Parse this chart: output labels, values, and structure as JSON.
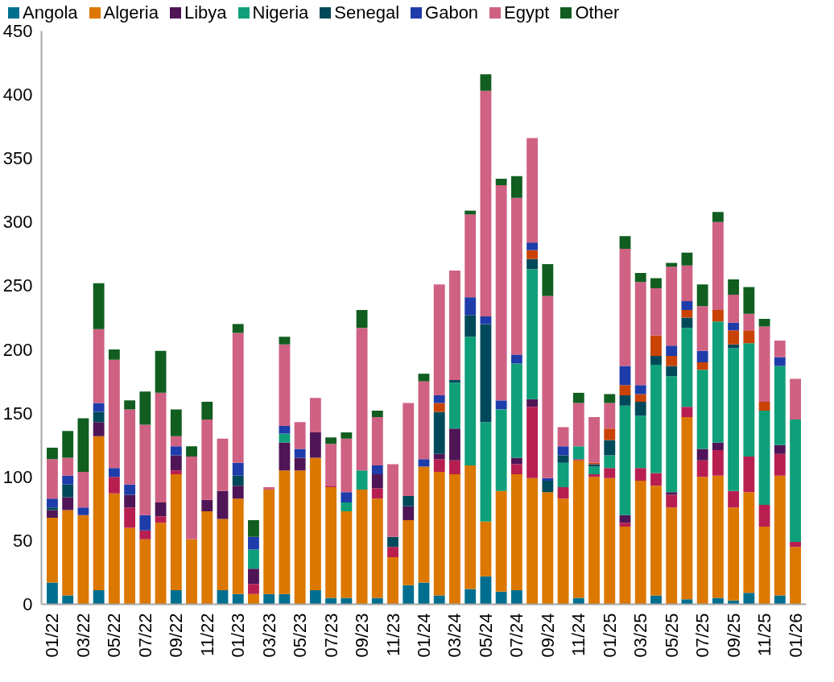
{
  "chart_data": {
    "type": "bar",
    "stacked": true,
    "legend": "top",
    "grid": false,
    "categories": [
      "01/22",
      null,
      "03/22",
      null,
      "05/22",
      null,
      "07/22",
      null,
      "09/22",
      null,
      "11/22",
      null,
      "01/23",
      null,
      "03/23",
      null,
      "05/23",
      null,
      "07/23",
      null,
      "09/23",
      null,
      "11/23",
      null,
      "01/24",
      null,
      "03/24",
      null,
      "05/24",
      null,
      "07/24",
      null,
      "09/24",
      null,
      "11/24",
      null,
      "01/25",
      null,
      "03/25",
      null,
      "05/25",
      null,
      "07/25",
      null,
      "09/25",
      null,
      "11/25",
      null,
      "01/26"
    ],
    "ylim": [
      0,
      450
    ],
    "yticks": [
      0,
      50,
      100,
      150,
      200,
      250,
      300,
      350,
      400,
      450
    ],
    "series": [
      {
        "name": "Angola",
        "color": "#006f8f",
        "values": [
          17,
          7,
          0,
          11,
          0,
          0,
          0,
          0,
          11,
          0,
          0,
          11,
          8,
          0,
          8,
          8,
          0,
          11,
          5,
          5,
          0,
          5,
          0,
          15,
          17,
          7,
          0,
          12,
          22,
          10,
          11,
          0,
          0,
          0,
          5,
          0,
          0,
          0,
          0,
          7,
          0,
          4,
          0,
          5,
          3,
          9,
          0,
          7,
          0
        ]
      },
      {
        "name": "Algeria",
        "color": "#dc7700",
        "values": [
          51,
          67,
          70,
          121,
          87,
          60,
          51,
          64,
          91,
          51,
          73,
          56,
          75,
          8,
          82,
          97,
          105,
          104,
          87,
          68,
          90,
          78,
          37,
          51,
          91,
          97,
          102,
          97,
          43,
          79,
          91,
          99,
          88,
          83,
          108,
          100,
          99,
          61,
          97,
          86,
          76,
          143,
          100,
          96,
          73,
          79,
          61,
          94,
          45
        ]
      },
      {
        "color": "#b81f50",
        "values": [
          0,
          0,
          0,
          0,
          13,
          16,
          7,
          5,
          3,
          0,
          0,
          0,
          0,
          8,
          0,
          0,
          0,
          0,
          1,
          0,
          0,
          8,
          8,
          0,
          0,
          10,
          11,
          0,
          0,
          0,
          8,
          56,
          0,
          9,
          1,
          2,
          8,
          3,
          10,
          10,
          10,
          8,
          13,
          20,
          13,
          28,
          17,
          17,
          4
        ]
      },
      {
        "name": "Libya",
        "color": "#4f1556",
        "values": [
          6,
          10,
          0,
          11,
          0,
          10,
          0,
          11,
          12,
          0,
          9,
          22,
          10,
          12,
          0,
          22,
          10,
          20,
          0,
          0,
          0,
          11,
          0,
          11,
          0,
          4,
          25,
          0,
          0,
          0,
          5,
          6,
          0,
          0,
          0,
          0,
          0,
          6,
          0,
          0,
          2,
          0,
          9,
          6,
          0,
          0,
          0,
          7,
          0
        ]
      },
      {
        "name": "Nigeria",
        "color": "#0fa07a",
        "values": [
          0,
          0,
          0,
          0,
          0,
          0,
          0,
          0,
          0,
          0,
          0,
          0,
          0,
          15,
          0,
          7,
          0,
          0,
          0,
          7,
          15,
          0,
          0,
          0,
          0,
          0,
          36,
          101,
          78,
          64,
          74,
          102,
          0,
          19,
          10,
          6,
          10,
          86,
          41,
          85,
          91,
          62,
          62,
          95,
          112,
          89,
          74,
          62,
          96
        ]
      },
      {
        "name": "Senegal",
        "color": "#00495a",
        "values": [
          2,
          10,
          0,
          8,
          0,
          0,
          0,
          0,
          0,
          0,
          0,
          0,
          8,
          0,
          0,
          0,
          0,
          0,
          0,
          0,
          0,
          0,
          8,
          8,
          0,
          33,
          2,
          17,
          77,
          0,
          0,
          8,
          9,
          6,
          0,
          2,
          12,
          8,
          11,
          7,
          8,
          8,
          0,
          0,
          3,
          0,
          0,
          0,
          0
        ]
      },
      {
        "color": "#c94305",
        "values": [
          0,
          0,
          0,
          0,
          0,
          0,
          0,
          0,
          0,
          0,
          0,
          0,
          0,
          0,
          0,
          0,
          0,
          0,
          0,
          0,
          0,
          0,
          0,
          0,
          0,
          7,
          0,
          0,
          0,
          0,
          0,
          7,
          0,
          0,
          0,
          1,
          9,
          8,
          6,
          16,
          8,
          6,
          6,
          9,
          11,
          10,
          7,
          0,
          0
        ]
      },
      {
        "name": "Gabon",
        "color": "#1e3caa",
        "values": [
          7,
          7,
          6,
          7,
          7,
          8,
          12,
          0,
          7,
          0,
          0,
          0,
          10,
          10,
          0,
          6,
          7,
          0,
          0,
          8,
          0,
          7,
          0,
          0,
          6,
          6,
          0,
          14,
          6,
          7,
          7,
          6,
          2,
          7,
          0,
          0,
          0,
          15,
          7,
          0,
          8,
          7,
          9,
          0,
          6,
          0,
          0,
          7,
          0
        ]
      },
      {
        "name": "Egypt",
        "color": "#cf6183",
        "values": [
          31,
          14,
          28,
          58,
          85,
          59,
          71,
          86,
          8,
          65,
          63,
          41,
          102,
          0,
          2,
          64,
          21,
          27,
          33,
          42,
          112,
          38,
          57,
          73,
          61,
          87,
          86,
          65,
          177,
          169,
          123,
          82,
          143,
          15,
          34,
          36,
          20,
          92,
          81,
          37,
          62,
          28,
          35,
          69,
          22,
          13,
          59,
          13,
          32
        ]
      },
      {
        "name": "Other",
        "color": "#115e20",
        "values": [
          9,
          21,
          42,
          36,
          8,
          7,
          26,
          33,
          21,
          8,
          14,
          0,
          7,
          13,
          0,
          6,
          0,
          0,
          5,
          5,
          14,
          5,
          0,
          0,
          6,
          0,
          0,
          3,
          13,
          5,
          17,
          0,
          25,
          0,
          8,
          0,
          7,
          10,
          7,
          8,
          3,
          10,
          17,
          8,
          12,
          21,
          6,
          0,
          0
        ]
      }
    ]
  }
}
